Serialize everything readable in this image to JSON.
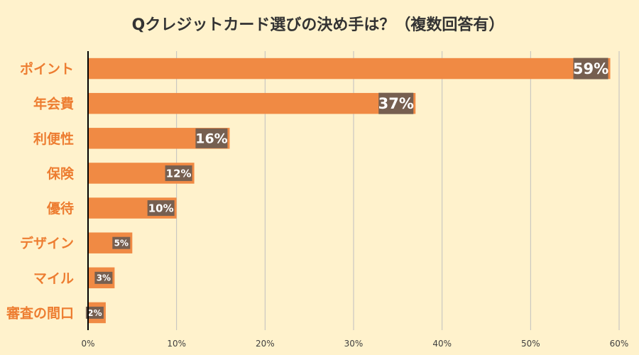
{
  "chart_data": {
    "type": "bar",
    "orientation": "horizontal",
    "title": "Qクレジットカード選びの決め手は？（複数回答有）",
    "categories": [
      "ポイント",
      "年会費",
      "利便性",
      "保険",
      "優待",
      "デザイン",
      "マイル",
      "審査の間口"
    ],
    "values": [
      59,
      37,
      16,
      12,
      10,
      5,
      3,
      2
    ],
    "data_labels": [
      "59%",
      "37%",
      "16%",
      "12%",
      "10%",
      "5%",
      "3%",
      "2%"
    ],
    "x_ticks": [
      "0%",
      "10%",
      "20%",
      "30%",
      "40%",
      "50%",
      "60%"
    ],
    "xlim": [
      0,
      60
    ],
    "xlabel": "",
    "ylabel": "",
    "grid": true,
    "legend": "none",
    "colors": {
      "bar": "#f08a44",
      "category_text": "#ed7d31",
      "label_bg": "#6f5d51",
      "background": "#fff2cc"
    }
  }
}
